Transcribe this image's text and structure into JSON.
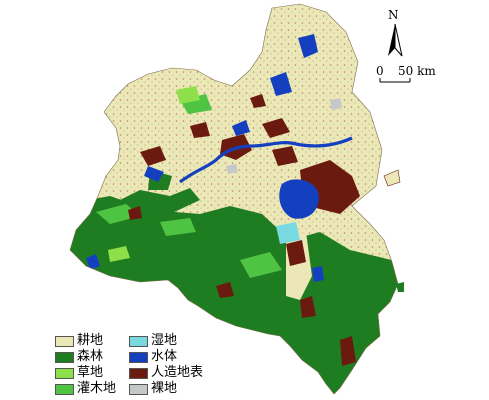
{
  "map": {
    "north_label": "N",
    "scale": {
      "zero": "0",
      "distance": "50 km"
    },
    "legend": [
      {
        "label": "耕地",
        "color": "#ece7b7"
      },
      {
        "label": "森林",
        "color": "#1f7d21"
      },
      {
        "label": "草地",
        "color": "#8ee04a"
      },
      {
        "label": "灌木地",
        "color": "#4fc443"
      },
      {
        "label": "湿地",
        "color": "#79d9e0"
      },
      {
        "label": "水体",
        "color": "#1440c0"
      },
      {
        "label": "人造地表",
        "color": "#6b1a10"
      },
      {
        "label": "裸地",
        "color": "#c4c8c8"
      }
    ]
  }
}
